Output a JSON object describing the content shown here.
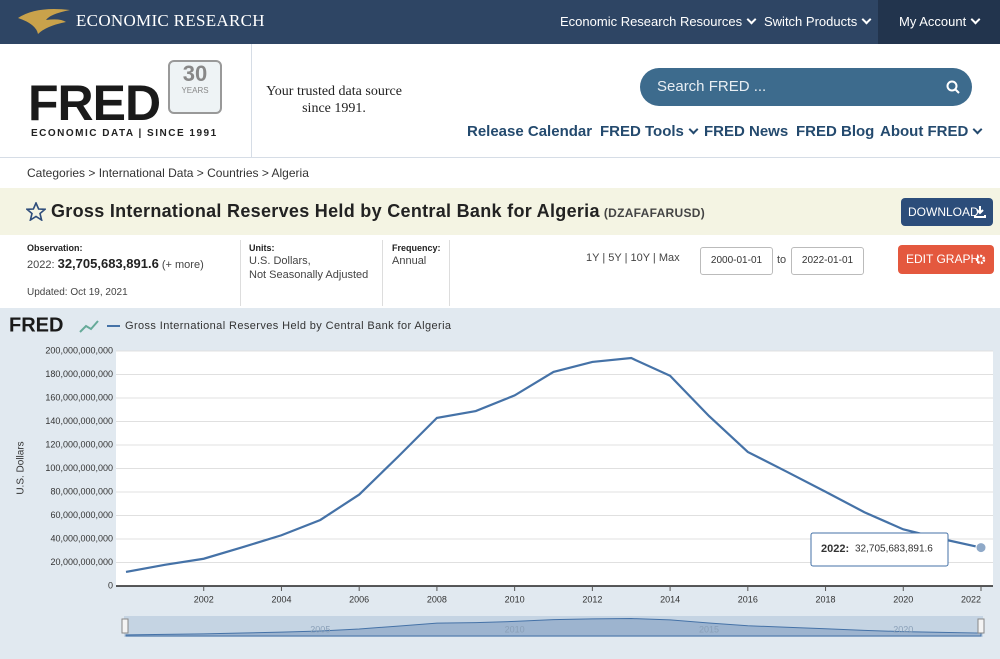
{
  "top_nav": {
    "brand": "ECONOMIC RESEARCH",
    "links": [
      "Economic Research Resources",
      "Switch Products",
      "My Account"
    ]
  },
  "logo": {
    "name": "FRED",
    "subtitle": "ECONOMIC DATA | SINCE 1991",
    "badge_number": "30",
    "badge_text": "YEARS"
  },
  "header": {
    "trusted_line1": "Your trusted data source",
    "trusted_line2": "since 1991.",
    "search_placeholder": "Search FRED ...",
    "nav": [
      "Release Calendar",
      "FRED Tools",
      "FRED News",
      "FRED Blog",
      "About FRED"
    ]
  },
  "breadcrumb": [
    "Categories",
    "International Data",
    "Countries",
    "Algeria"
  ],
  "series": {
    "title": "Gross International Reserves Held by Central Bank for Algeria",
    "id": "(DZAFAFARUSD)",
    "download": "DOWNLOAD"
  },
  "observation": {
    "label": "Observation:",
    "date": "2022:",
    "value": "32,705,683,891.6",
    "more": "(+ more)",
    "updated": "Updated: Oct 19, 2021"
  },
  "units": {
    "label": "Units:",
    "line1": "U.S. Dollars,",
    "line2": "Not Seasonally Adjusted"
  },
  "frequency": {
    "label": "Frequency:",
    "value": "Annual"
  },
  "range": {
    "buttons": [
      "1Y",
      "5Y",
      "10Y",
      "Max"
    ],
    "start": "2000-01-01",
    "to": "to",
    "end": "2022-01-01",
    "edit": "EDIT GRAPH"
  },
  "chart_data": {
    "type": "line",
    "logo": "FRED",
    "y_label": "U.S. Dollars",
    "x": [
      2000,
      2001,
      2002,
      2003,
      2004,
      2005,
      2006,
      2007,
      2008,
      2009,
      2010,
      2011,
      2012,
      2013,
      2014,
      2015,
      2016,
      2017,
      2018,
      2019,
      2020,
      2021,
      2022
    ],
    "series": [
      {
        "name": "Gross International Reserves Held by Central Bank for Algeria",
        "color": "#4572a7",
        "values": [
          12000000000,
          18000000000,
          23200000000,
          33000000000,
          43200000000,
          56200000000,
          77800000000,
          110000000000,
          143100000000,
          148900000000,
          162200000000,
          182200000000,
          190700000000,
          194000000000,
          178900000000,
          144700000000,
          114100000000,
          97300000000,
          80200000000,
          62800000000,
          48200000000,
          40000000000,
          32705683891.6
        ]
      }
    ],
    "xlim": [
      2000,
      2022
    ],
    "xticks": [
      2002,
      2004,
      2006,
      2008,
      2010,
      2012,
      2014,
      2016,
      2018,
      2020,
      2022
    ],
    "ylim": [
      0,
      200000000000
    ],
    "yticks": [
      0,
      {
        "value": 20000000000,
        "label": "20,000,000,000"
      },
      {
        "value": 40000000000,
        "label": "40,000,000,000"
      },
      {
        "value": 60000000000,
        "label": "60,000,000,000"
      },
      {
        "value": 80000000000,
        "label": "80,000,000,000"
      },
      {
        "value": 100000000000,
        "label": "100,000,000,000"
      },
      {
        "value": 120000000000,
        "label": "120,000,000,000"
      },
      {
        "value": 140000000000,
        "label": "140,000,000,000"
      },
      {
        "value": 160000000000,
        "label": "160,000,000,000"
      },
      {
        "value": 180000000000,
        "label": "180,000,000,000"
      },
      {
        "value": 200000000000,
        "label": "200,000,000,000"
      }
    ],
    "grid": true,
    "tooltip": {
      "date": "2022:",
      "value": "32,705,683,891.6"
    },
    "navigator_xticks": [
      2005,
      2010,
      2015,
      2020
    ]
  }
}
